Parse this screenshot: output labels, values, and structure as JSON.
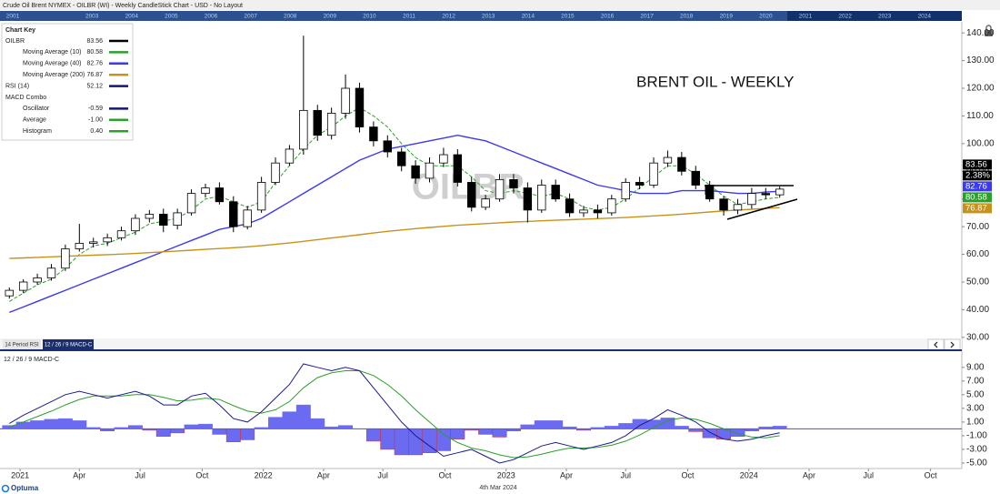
{
  "header": {
    "title": "Crude Oil Brent NYMEX - OILBR (WI) - Weekly CandleStick Chart - USD - No Layout"
  },
  "timeline": {
    "years": [
      "2001",
      null,
      "2003",
      "2004",
      "2005",
      "2006",
      "2007",
      "2008",
      "2009",
      "2010",
      "2011",
      "2012",
      "2013",
      "2014",
      "2015",
      "2016",
      "2017",
      "2018",
      "2019",
      "2020",
      "2021",
      "2022",
      "2023",
      "2024"
    ]
  },
  "chart_key": {
    "title": "Chart Key",
    "items": [
      {
        "name": "OILBR",
        "value": "83.56",
        "color": "#000000",
        "indent": false
      },
      {
        "name": "Moving Average (10)",
        "value": "80.58",
        "color": "#2aa02a",
        "indent": true
      },
      {
        "name": "Moving Average (40)",
        "value": "82.76",
        "color": "#3a3af0",
        "indent": true
      },
      {
        "name": "Moving Average (200)",
        "value": "76.87",
        "color": "#c8921a",
        "indent": true
      },
      {
        "name": "RSI (14)",
        "value": "52.12",
        "color": "#141478",
        "indent": false
      },
      {
        "name": "MACD Combo",
        "value": null,
        "color": null,
        "indent": false
      },
      {
        "name": "Oscillator",
        "value": "-0.59",
        "color": "#141478",
        "indent": true
      },
      {
        "name": "Average",
        "value": "-1.00",
        "color": "#2aa02a",
        "indent": true
      },
      {
        "name": "Histogram",
        "value": "0.40",
        "color": "#2aa02a",
        "indent": true
      }
    ]
  },
  "tabs": [
    "14 Period RSI",
    "12 / 26 / 9 MACD-C"
  ],
  "footer": {
    "brand": "Optuma",
    "date": "4th Mar 2024"
  },
  "chart_data": [
    {
      "type": "candlestick",
      "title": "BRENT OIL - WEEKLY",
      "watermark": "OILBR",
      "x": [
        2,
        5,
        8,
        11,
        14,
        17,
        20,
        23,
        26,
        29,
        32,
        35,
        38,
        41,
        44,
        47,
        50,
        53,
        56,
        59,
        62,
        65,
        68,
        71,
        74,
        77,
        80,
        83,
        86,
        89,
        92,
        95,
        98,
        101,
        104,
        107,
        110,
        113,
        116,
        119,
        122,
        125,
        128,
        131,
        134,
        137,
        140,
        143,
        146,
        149,
        152,
        155,
        158,
        161,
        164,
        167
      ],
      "open": [
        45,
        47,
        50,
        51.5,
        55,
        62,
        64,
        64.5,
        66,
        68.5,
        73,
        74.5,
        70.5,
        75,
        82,
        84,
        79,
        70,
        76,
        86,
        93,
        98,
        112,
        103,
        111,
        120,
        106,
        101,
        97,
        92,
        87.5,
        93,
        96,
        86,
        77,
        80,
        87,
        84,
        76,
        85,
        80,
        75,
        76,
        75,
        80,
        86,
        85,
        93,
        95,
        90,
        85,
        80,
        76,
        78,
        82,
        81.5
      ],
      "high": [
        48,
        51,
        53,
        56.5,
        63.5,
        71,
        66,
        67.5,
        70,
        74.5,
        76,
        76.5,
        76.5,
        83.5,
        85.5,
        86,
        81,
        77.5,
        88,
        95,
        99.5,
        139,
        114,
        113,
        125,
        122,
        108,
        103,
        98.5,
        94,
        95,
        98.5,
        98,
        88,
        81.5,
        89,
        89,
        86,
        87,
        87,
        82,
        77.5,
        78,
        81.5,
        87.5,
        88,
        95,
        97.5,
        97,
        92,
        86.5,
        81,
        80,
        84,
        84,
        84.5
      ],
      "low": [
        44,
        46,
        49,
        50.5,
        54,
        61,
        62.5,
        63,
        65,
        67,
        71.5,
        68,
        69,
        74,
        80.5,
        78,
        68,
        69,
        75,
        85,
        92,
        96,
        101,
        101.5,
        109,
        104,
        99,
        95,
        90,
        85.5,
        86,
        91.5,
        84.5,
        75.5,
        76,
        79,
        82,
        71.5,
        75,
        79,
        73.5,
        73.5,
        73,
        74,
        79,
        83.5,
        84,
        91.5,
        88.5,
        83.5,
        79,
        74,
        74.5,
        76.5,
        80,
        80.5
      ],
      "close": [
        47,
        50,
        51.5,
        55,
        62,
        64,
        64.5,
        66,
        68.5,
        73,
        74.5,
        70.5,
        75,
        82,
        84,
        79,
        70,
        76,
        86,
        93,
        98,
        112,
        103,
        111,
        120,
        106,
        101,
        97,
        92,
        87.5,
        93,
        96,
        86,
        77,
        80,
        87,
        84,
        76,
        85,
        80,
        75,
        76,
        75,
        80,
        86,
        85,
        93,
        95,
        90,
        85,
        80,
        76,
        78,
        82,
        81.5,
        83.56
      ],
      "up_color": "#ffffff",
      "down_color": "#000000",
      "color": "#000000",
      "last_change": 2.38,
      "last_change_label": "2.38%",
      "series": [
        {
          "color": "#2aa02a",
          "dash": true,
          "values": [
            43,
            46,
            49,
            51,
            55,
            60,
            63,
            64,
            66,
            68,
            71,
            72,
            73,
            76,
            80,
            81,
            79,
            77,
            79,
            86,
            92,
            98,
            103,
            106,
            110,
            113,
            110,
            106,
            100,
            95,
            92,
            92,
            92,
            88,
            83,
            82,
            83,
            82,
            81,
            82,
            80,
            77,
            76,
            77,
            80,
            84,
            88,
            92,
            92,
            89,
            85,
            81,
            78,
            79,
            80,
            80.58
          ]
        },
        {
          "color": "#3a3af0",
          "dash": false,
          "values": [
            39,
            41,
            43,
            45,
            47,
            49,
            51,
            53,
            55,
            57,
            59,
            61,
            63,
            65,
            67,
            69,
            70,
            71,
            73,
            76,
            79,
            82,
            85,
            88,
            91,
            94,
            96,
            98,
            99,
            100,
            101,
            102,
            103,
            102,
            101,
            99,
            97,
            95,
            93,
            91,
            89,
            87,
            85,
            84,
            83,
            82,
            82,
            82,
            83,
            83,
            83,
            82.5,
            82,
            82,
            82.5,
            82.76
          ]
        },
        {
          "color": "#c8921a",
          "dash": false,
          "values": [
            58.5,
            58.7,
            58.9,
            59.1,
            59.3,
            59.5,
            59.7,
            59.9,
            60.1,
            60.3,
            60.6,
            60.9,
            61.2,
            61.5,
            61.8,
            62.1,
            62.4,
            62.7,
            63.1,
            63.6,
            64.1,
            64.7,
            65.3,
            65.9,
            66.5,
            67.1,
            67.7,
            68.3,
            68.8,
            69.3,
            69.7,
            70.1,
            70.5,
            70.8,
            71.1,
            71.4,
            71.7,
            71.9,
            72.1,
            72.3,
            72.5,
            72.7,
            72.9,
            73.1,
            73.3,
            73.6,
            73.9,
            74.2,
            74.5,
            74.9,
            75.3,
            75.7,
            76.0,
            76.3,
            76.6,
            76.87
          ]
        }
      ],
      "xlim": [
        0,
        206
      ],
      "ylim": [
        26,
        144
      ],
      "yticks": [
        {
          "value": 30,
          "label": "30.00"
        },
        {
          "value": 40,
          "label": "40.00"
        },
        {
          "value": 50,
          "label": "50.00"
        },
        {
          "value": 60,
          "label": "60.00"
        },
        {
          "value": 70,
          "label": "70.00"
        },
        {
          "value": 80,
          "label": "80.00"
        },
        {
          "value": 90,
          "label": "90.00"
        },
        {
          "value": 100,
          "label": "100.00"
        },
        {
          "value": 110,
          "label": "110.00"
        },
        {
          "value": 120,
          "label": "120.00"
        },
        {
          "value": 130,
          "label": "130.00"
        },
        {
          "value": 140,
          "label": "140.00"
        }
      ],
      "grid": false
    },
    {
      "type": "macd",
      "title": "12 / 26 / 9 MACD-C",
      "x": [
        2,
        5,
        8,
        11,
        14,
        17,
        20,
        23,
        26,
        29,
        32,
        35,
        38,
        41,
        44,
        47,
        50,
        53,
        56,
        59,
        62,
        65,
        68,
        71,
        74,
        77,
        80,
        83,
        86,
        89,
        92,
        95,
        98,
        101,
        104,
        107,
        110,
        113,
        116,
        119,
        122,
        125,
        128,
        131,
        134,
        137,
        140,
        143,
        146,
        149,
        152,
        155,
        158,
        161,
        164,
        167
      ],
      "series": [
        {
          "style": "histogram",
          "color": "#6b6bf2",
          "values": [
            0.5,
            1.0,
            1.2,
            1.4,
            1.5,
            1.2,
            0.2,
            -0.3,
            0.2,
            0.5,
            -0.2,
            -1.1,
            -0.6,
            0.6,
            0.7,
            -0.8,
            -1.9,
            -1.6,
            0.2,
            1.7,
            2.5,
            3.5,
            1.5,
            0.3,
            0.5,
            0.0,
            -1.8,
            -3.0,
            -3.8,
            -3.8,
            -3.5,
            -3.2,
            -1.5,
            -0.2,
            -0.8,
            -1.2,
            -0.3,
            0.6,
            1.2,
            1.2,
            0.3,
            -0.2,
            0.2,
            0.4,
            0.8,
            1.4,
            1.3,
            1.6,
            0.4,
            -0.4,
            -1.3,
            -1.5,
            -1.1,
            -0.3,
            0.3,
            0.4
          ]
        },
        {
          "style": "line",
          "color": "#2aa02a",
          "values": [
            0.3,
            1.0,
            1.8,
            2.6,
            3.5,
            4.3,
            4.8,
            4.8,
            4.8,
            5.0,
            5.0,
            4.6,
            4.1,
            4.2,
            4.5,
            4.3,
            3.4,
            2.6,
            2.3,
            2.8,
            4.0,
            6.0,
            7.5,
            8.2,
            8.5,
            8.5,
            7.8,
            6.5,
            4.8,
            2.8,
            1.0,
            -0.8,
            -2.0,
            -2.8,
            -3.2,
            -3.8,
            -4.2,
            -4.1,
            -3.7,
            -3.2,
            -2.8,
            -2.8,
            -2.7,
            -2.4,
            -1.8,
            -0.9,
            0.2,
            1.2,
            1.6,
            1.4,
            0.8,
            0.0,
            -0.7,
            -1.2,
            -1.3,
            -1.0
          ]
        },
        {
          "style": "line",
          "color": "#1a1a8c",
          "values": [
            0.8,
            2.0,
            3.0,
            4.0,
            5.0,
            5.5,
            5.0,
            4.5,
            5.0,
            5.5,
            4.8,
            3.5,
            3.5,
            4.8,
            5.2,
            3.5,
            1.5,
            1.0,
            2.5,
            4.5,
            6.5,
            9.5,
            9.0,
            8.5,
            9.0,
            8.5,
            6.0,
            3.5,
            1.0,
            -1.0,
            -2.5,
            -4.0,
            -3.5,
            -3.0,
            -4.0,
            -5.0,
            -4.5,
            -3.5,
            -2.5,
            -2.0,
            -2.5,
            -3.0,
            -2.5,
            -2.0,
            -1.0,
            0.5,
            1.5,
            2.8,
            2.0,
            1.0,
            -0.5,
            -1.5,
            -1.8,
            -1.5,
            -1.0,
            -0.59
          ]
        }
      ],
      "xlim": [
        0,
        206
      ],
      "ylim": [
        -5.8,
        11.1
      ],
      "yticks": [
        {
          "value": -5,
          "label": "-5.00"
        },
        {
          "value": -3,
          "label": "-3.00"
        },
        {
          "value": -1,
          "label": "-1.00"
        },
        {
          "value": 1,
          "label": "1.00"
        },
        {
          "value": 3,
          "label": "3.00"
        },
        {
          "value": 5,
          "label": "5.00"
        },
        {
          "value": 7,
          "label": "7.00"
        },
        {
          "value": 9,
          "label": "9.00"
        }
      ],
      "xticks": [
        {
          "value": 4.3,
          "label": "2021"
        },
        {
          "value": 17,
          "label": "Apr"
        },
        {
          "value": 30,
          "label": "Jul"
        },
        {
          "value": 43.3,
          "label": "Oct"
        },
        {
          "value": 56.4,
          "label": "2022"
        },
        {
          "value": 69.3,
          "label": "Apr"
        },
        {
          "value": 82,
          "label": "Jul"
        },
        {
          "value": 95.3,
          "label": "Oct"
        },
        {
          "value": 108.4,
          "label": "2023"
        },
        {
          "value": 121.3,
          "label": "Apr"
        },
        {
          "value": 134,
          "label": "Jul"
        },
        {
          "value": 147.3,
          "label": "Oct"
        },
        {
          "value": 160.4,
          "label": "2024"
        },
        {
          "value": 173.3,
          "label": "Apr"
        },
        {
          "value": 186,
          "label": "Jul"
        },
        {
          "value": 199.3,
          "label": "Oct"
        }
      ],
      "grid": false
    }
  ]
}
